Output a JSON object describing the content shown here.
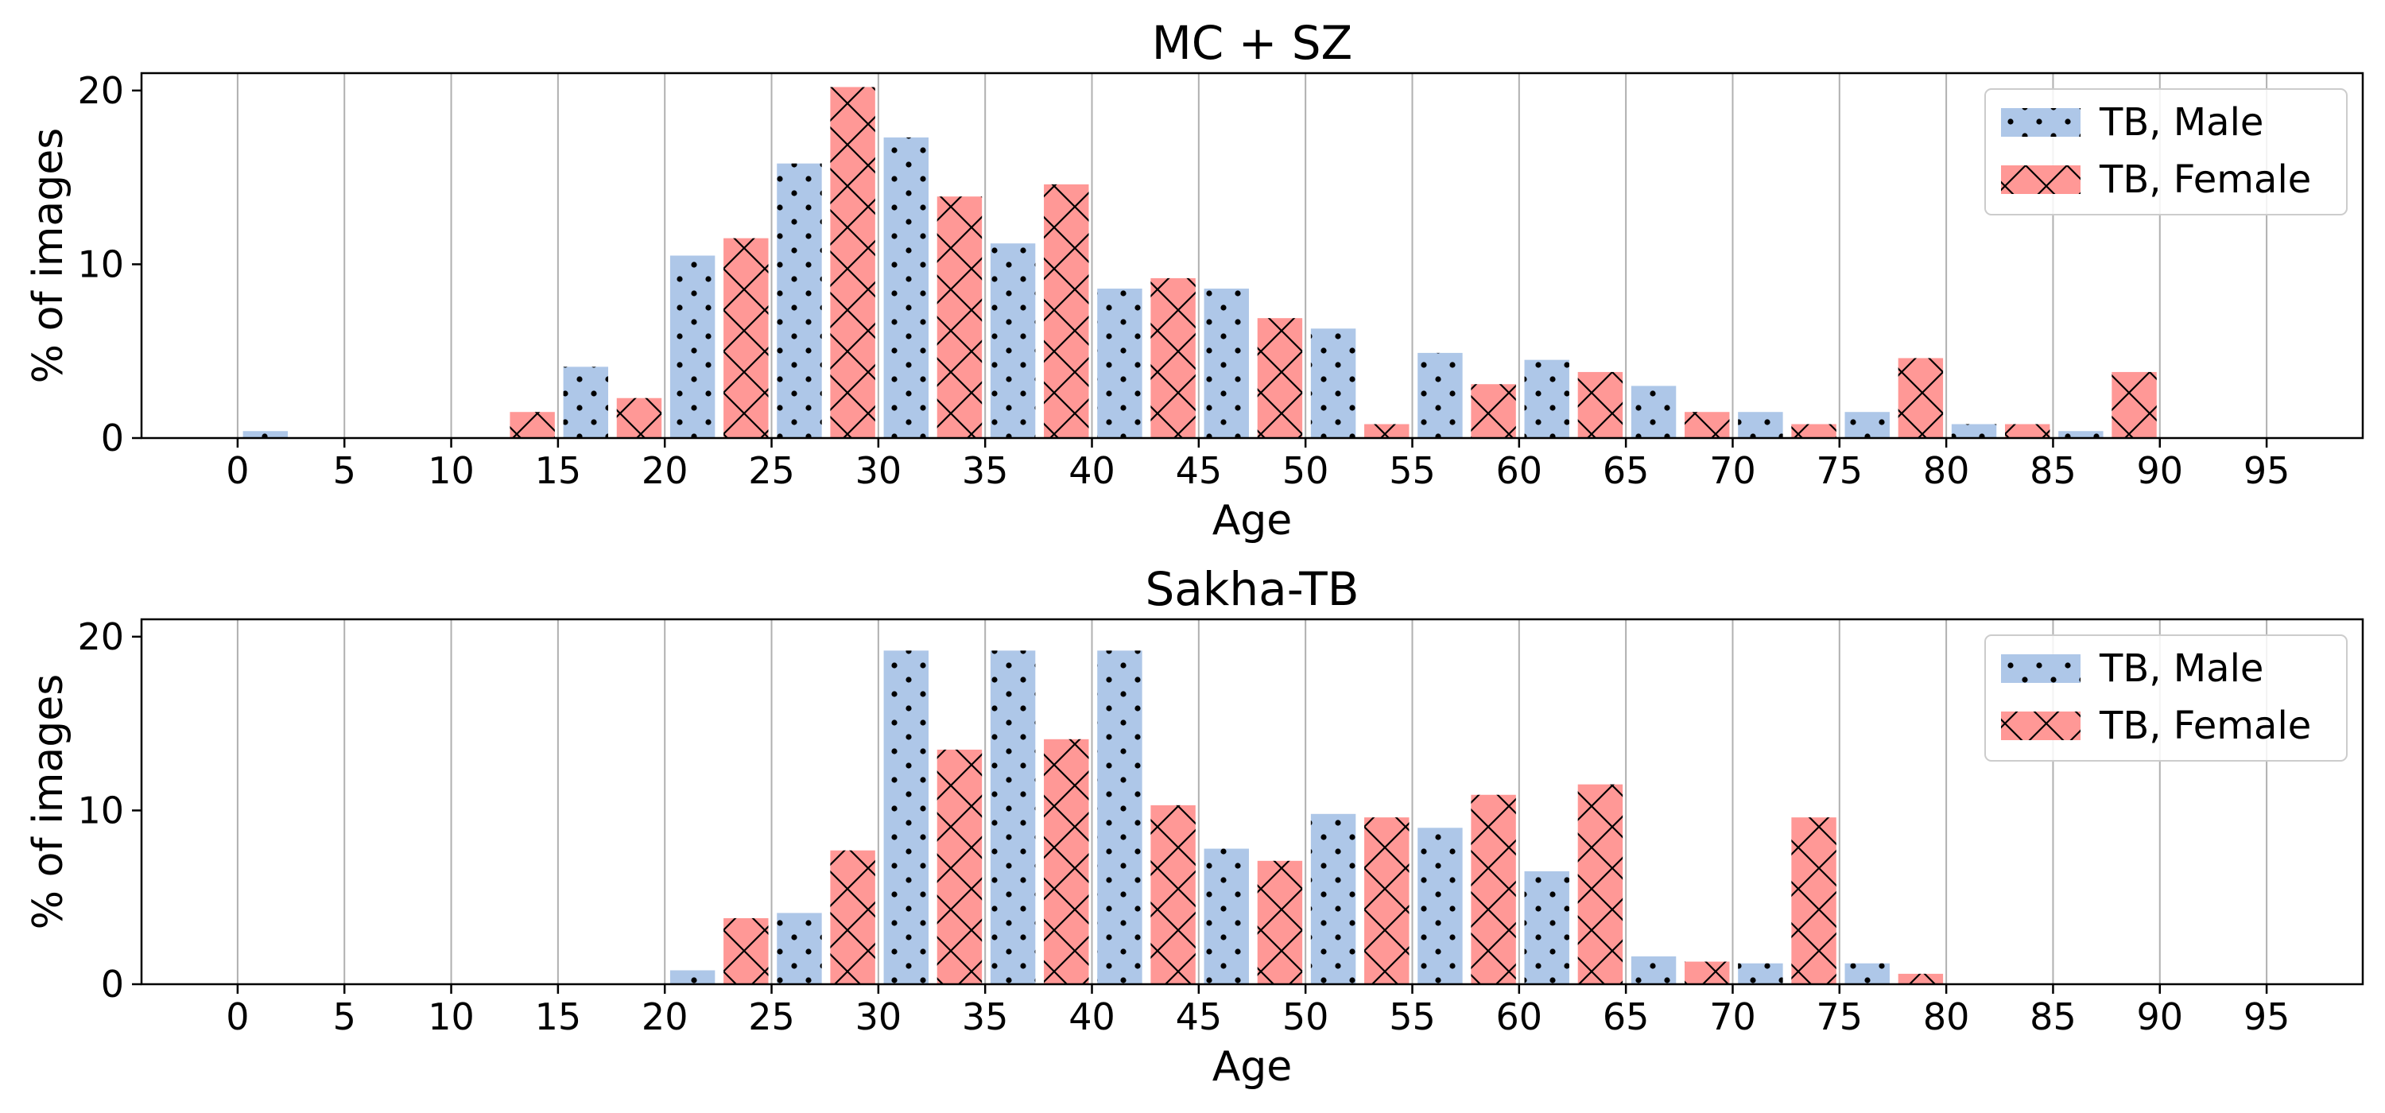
{
  "chart_data": [
    {
      "type": "bar",
      "title": "MC + SZ",
      "xlabel": "Age",
      "ylabel": "% of images",
      "xlim": [
        -4.5,
        99.5
      ],
      "ylim": [
        0,
        21
      ],
      "xticks": [
        0,
        5,
        10,
        15,
        20,
        25,
        30,
        35,
        40,
        45,
        50,
        55,
        60,
        65,
        70,
        75,
        80,
        85,
        90,
        95
      ],
      "xtick_labels": [
        "0",
        "5",
        "10",
        "15",
        "20",
        "25",
        "30",
        "35",
        "40",
        "45",
        "50",
        "55",
        "60",
        "65",
        "70",
        "75",
        "80",
        "85",
        "90",
        "95"
      ],
      "yticks": [
        0,
        10,
        20
      ],
      "ytick_labels": [
        "0",
        "10",
        "20"
      ],
      "grid": "vertical",
      "legend": "top-right",
      "bin_width": 5,
      "categories": [
        "0",
        "5",
        "10",
        "15",
        "20",
        "25",
        "30",
        "35",
        "40",
        "45",
        "50",
        "55",
        "60",
        "65",
        "70",
        "75",
        "80",
        "85"
      ],
      "series": [
        {
          "name": "TB, Male",
          "color": "#aec7e8",
          "hatch": "dots",
          "values": [
            0.4,
            0,
            0,
            4.1,
            10.5,
            15.8,
            17.3,
            11.2,
            8.6,
            8.6,
            6.3,
            4.9,
            4.5,
            3.0,
            1.5,
            1.5,
            0.8,
            0.4
          ]
        },
        {
          "name": "TB, Female",
          "color": "#ff9896",
          "hatch": "cross",
          "values": [
            0,
            0,
            1.5,
            2.3,
            11.5,
            20.2,
            13.9,
            14.6,
            9.2,
            6.9,
            0.8,
            3.1,
            3.8,
            1.5,
            0.8,
            4.6,
            0.8,
            3.8
          ]
        }
      ]
    },
    {
      "type": "bar",
      "title": "Sakha-TB",
      "xlabel": "Age",
      "ylabel": "% of images",
      "xlim": [
        -4.5,
        99.5
      ],
      "ylim": [
        0,
        21
      ],
      "xticks": [
        0,
        5,
        10,
        15,
        20,
        25,
        30,
        35,
        40,
        45,
        50,
        55,
        60,
        65,
        70,
        75,
        80,
        85,
        90,
        95
      ],
      "xtick_labels": [
        "0",
        "5",
        "10",
        "15",
        "20",
        "25",
        "30",
        "35",
        "40",
        "45",
        "50",
        "55",
        "60",
        "65",
        "70",
        "75",
        "80",
        "85",
        "90",
        "95"
      ],
      "yticks": [
        0,
        10,
        20
      ],
      "ytick_labels": [
        "0",
        "10",
        "20"
      ],
      "grid": "vertical",
      "legend": "top-right",
      "bin_width": 5,
      "categories": [
        "20",
        "25",
        "30",
        "35",
        "40",
        "45",
        "50",
        "55",
        "60",
        "65",
        "70",
        "75"
      ],
      "series": [
        {
          "name": "TB, Male",
          "color": "#aec7e8",
          "hatch": "dots",
          "values": [
            0.8,
            4.1,
            19.2,
            19.2,
            19.2,
            7.8,
            9.8,
            9.0,
            6.5,
            1.6,
            1.2,
            1.2
          ]
        },
        {
          "name": "TB, Female",
          "color": "#ff9896",
          "hatch": "cross",
          "values": [
            3.8,
            7.7,
            13.5,
            14.1,
            10.3,
            7.1,
            9.6,
            10.9,
            11.5,
            1.3,
            9.6,
            0.6
          ]
        }
      ]
    }
  ]
}
